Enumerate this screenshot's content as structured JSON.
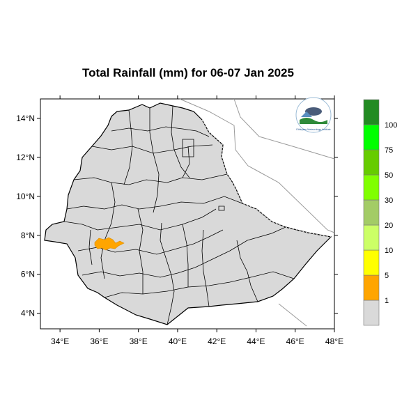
{
  "title": "Total Rainfall (mm) for 06-07 Jan 2025",
  "map": {
    "lon_range": [
      33,
      48
    ],
    "lat_range": [
      3.2,
      15
    ],
    "x_ticks": [
      "34°E",
      "36°E",
      "38°E",
      "40°E",
      "42°E",
      "44°E",
      "46°E",
      "48°E"
    ],
    "y_ticks": [
      "4°N",
      "6°N",
      "8°N",
      "10°N",
      "12°N",
      "14°N"
    ],
    "land_color": "#d9d9d9",
    "rain_color": "#ffa500"
  },
  "legend": {
    "bins": [
      {
        "color": "#d9d9d9",
        "label": "1"
      },
      {
        "color": "#ffa500",
        "label": "5"
      },
      {
        "color": "#ffff00",
        "label": "10"
      },
      {
        "color": "#ccff66",
        "label": "20"
      },
      {
        "color": "#a3cc66",
        "label": "30"
      },
      {
        "color": "#80ff00",
        "label": "50"
      },
      {
        "color": "#66cc00",
        "label": "75"
      },
      {
        "color": "#00ff00",
        "label": "100"
      },
      {
        "color": "#228b22",
        "label": ""
      }
    ]
  },
  "logo": {
    "icon": "ethiopian-meteorology-institute-logo",
    "text": "Ethiopian Meteorology Institute"
  }
}
